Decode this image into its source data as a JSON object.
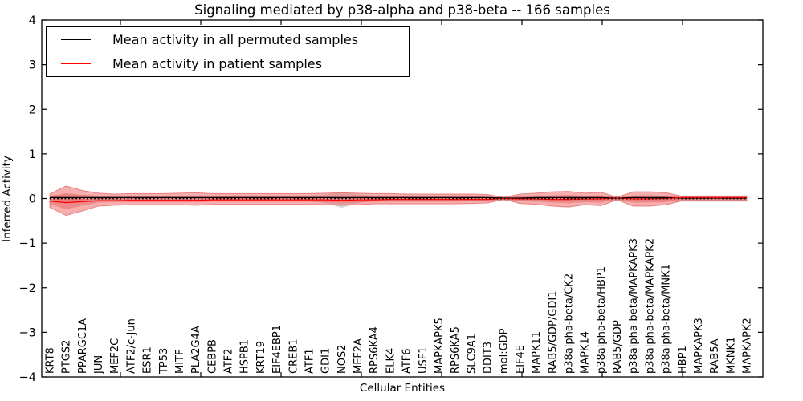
{
  "title": "Signaling mediated by p38-alpha and p38-beta -- 166 samples",
  "legend": {
    "items": [
      {
        "label": "Mean activity in all permuted samples",
        "color": "#000000"
      },
      {
        "label": "Mean activity in patient samples",
        "color": "#ff0000"
      }
    ]
  },
  "axes": {
    "xlabel": "Cellular Entities",
    "ylabel": "Inferred Activity",
    "yticks": [
      "4",
      "3",
      "2",
      "1",
      "0",
      "−1",
      "−2",
      "−3",
      "−4"
    ]
  },
  "chart_data": {
    "type": "line",
    "title": "Signaling mediated by p38-alpha and p38-beta -- 166 samples",
    "xlabel": "Cellular Entities",
    "ylabel": "Inferred Activity",
    "ylim": [
      -4,
      4
    ],
    "grid": false,
    "legend_position": "upper left",
    "categories": [
      "KRT8",
      "PTGS2",
      "PPARGC1A",
      "JUN",
      "MEF2C",
      "ATF2/c-Jun",
      "ESR1",
      "TP53",
      "MITF",
      "PLA2G4A",
      "CEBPB",
      "ATF2",
      "HSPB1",
      "KRT19",
      "EIF4EBP1",
      "CREB1",
      "ATF1",
      "GDI1",
      "NOS2",
      "MEF2A",
      "RPS6KA4",
      "ELK4",
      "ATF6",
      "USF1",
      "MAPKAPK5",
      "RPS6KA5",
      "SLC9A1",
      "DDIT3",
      "mol:GDP",
      "EIF4E",
      "MAPK11",
      "RAB5/GDP/GDI1",
      "p38alpha-beta/CK2",
      "MAPK14",
      "p38alpha-beta/HBP1",
      "RAB5/GDP",
      "p38alpha-beta/MAPKAPK3",
      "p38alpha-beta/MAPKAPK2",
      "p38alpha-beta/MNK1",
      "HBP1",
      "MAPKAPK3",
      "RAB5A",
      "MKNK1",
      "MAPKAPK2"
    ],
    "series": [
      {
        "name": "Mean activity in all permuted samples",
        "color": "#000000",
        "style": "solid",
        "values": [
          0.02,
          0.02,
          0.02,
          0.02,
          0.02,
          0.02,
          0.02,
          0.02,
          0.02,
          0.02,
          0.02,
          0.02,
          0.02,
          0.02,
          0.02,
          0.02,
          0.02,
          0.02,
          0.02,
          0.02,
          0.02,
          0.02,
          0.02,
          0.02,
          0.02,
          0.02,
          0.02,
          0.02,
          0.01,
          0.01,
          0.02,
          0.02,
          0.02,
          0.02,
          0.02,
          0.01,
          0.02,
          0.02,
          0.02,
          0.01,
          0.01,
          0.01,
          0.01,
          0.01
        ]
      },
      {
        "name": "Mean activity in patient samples",
        "color": "#ff0000",
        "style": "solid",
        "values": [
          -0.06,
          -0.09,
          -0.07,
          -0.05,
          -0.05,
          -0.04,
          -0.04,
          -0.04,
          -0.04,
          -0.04,
          -0.03,
          -0.03,
          -0.03,
          -0.03,
          -0.03,
          -0.03,
          -0.03,
          -0.03,
          -0.04,
          -0.03,
          -0.03,
          -0.02,
          -0.02,
          -0.02,
          -0.02,
          -0.02,
          -0.02,
          -0.02,
          0.0,
          -0.01,
          -0.01,
          -0.02,
          -0.02,
          -0.01,
          -0.01,
          0.01,
          -0.01,
          -0.01,
          0.0,
          0.02,
          0.02,
          0.02,
          0.02,
          0.02
        ]
      },
      {
        "name": "zero-reference",
        "color": "#000000",
        "style": "dotted",
        "values": [
          0,
          0,
          0,
          0,
          0,
          0,
          0,
          0,
          0,
          0,
          0,
          0,
          0,
          0,
          0,
          0,
          0,
          0,
          0,
          0,
          0,
          0,
          0,
          0,
          0,
          0,
          0,
          0,
          0,
          0,
          0,
          0,
          0,
          0,
          0,
          0,
          0,
          0,
          0,
          0,
          0,
          0,
          0,
          0
        ]
      }
    ],
    "bands": [
      {
        "name": "permuted-range",
        "color": "#888888",
        "opacity": 0.35,
        "stroke": "none",
        "upper": [
          0.06,
          0.1,
          0.08,
          0.06,
          0.06,
          0.06,
          0.06,
          0.06,
          0.06,
          0.06,
          0.06,
          0.06,
          0.06,
          0.06,
          0.06,
          0.06,
          0.06,
          0.09,
          0.15,
          0.09,
          0.06,
          0.06,
          0.06,
          0.06,
          0.06,
          0.06,
          0.06,
          0.06,
          0.05,
          0.06,
          0.06,
          0.06,
          0.06,
          0.06,
          0.06,
          0.05,
          0.06,
          0.06,
          0.06,
          0.07,
          0.07,
          0.07,
          0.07,
          0.07
        ],
        "lower": [
          -0.06,
          -0.12,
          -0.09,
          -0.06,
          -0.06,
          -0.06,
          -0.06,
          -0.06,
          -0.06,
          -0.06,
          -0.06,
          -0.06,
          -0.06,
          -0.06,
          -0.06,
          -0.06,
          -0.06,
          -0.1,
          -0.21,
          -0.1,
          -0.06,
          -0.06,
          -0.06,
          -0.06,
          -0.06,
          -0.06,
          -0.06,
          -0.06,
          -0.05,
          -0.06,
          -0.06,
          -0.06,
          -0.06,
          -0.06,
          -0.06,
          -0.05,
          -0.06,
          -0.06,
          -0.06,
          -0.07,
          -0.07,
          -0.07,
          -0.07,
          -0.07
        ]
      },
      {
        "name": "patient-range-outer",
        "color": "#ee6b6b",
        "opacity": 0.55,
        "stroke": "#e26060",
        "upper": [
          0.1,
          0.28,
          0.18,
          0.12,
          0.1,
          0.11,
          0.11,
          0.11,
          0.12,
          0.13,
          0.11,
          0.11,
          0.11,
          0.11,
          0.11,
          0.11,
          0.11,
          0.12,
          0.13,
          0.12,
          0.11,
          0.11,
          0.1,
          0.1,
          0.1,
          0.1,
          0.1,
          0.09,
          0.02,
          0.1,
          0.12,
          0.15,
          0.16,
          0.12,
          0.14,
          0.03,
          0.15,
          0.15,
          0.13,
          0.05,
          0.05,
          0.05,
          0.05,
          0.05
        ],
        "lower": [
          -0.2,
          -0.38,
          -0.28,
          -0.17,
          -0.15,
          -0.14,
          -0.14,
          -0.14,
          -0.14,
          -0.15,
          -0.13,
          -0.13,
          -0.13,
          -0.13,
          -0.13,
          -0.13,
          -0.13,
          -0.14,
          -0.15,
          -0.14,
          -0.12,
          -0.12,
          -0.12,
          -0.12,
          -0.12,
          -0.12,
          -0.11,
          -0.1,
          -0.02,
          -0.11,
          -0.13,
          -0.17,
          -0.19,
          -0.14,
          -0.16,
          -0.03,
          -0.17,
          -0.17,
          -0.14,
          -0.05,
          -0.04,
          -0.04,
          -0.04,
          -0.04
        ]
      },
      {
        "name": "patient-range-inner",
        "color": "#ee6b6b",
        "opacity": 0.55,
        "stroke": "none",
        "upper": [
          0.05,
          0.12,
          0.08,
          0.06,
          0.05,
          0.05,
          0.05,
          0.05,
          0.06,
          0.06,
          0.05,
          0.05,
          0.05,
          0.05,
          0.05,
          0.05,
          0.05,
          0.06,
          0.06,
          0.06,
          0.05,
          0.05,
          0.05,
          0.05,
          0.05,
          0.05,
          0.05,
          0.04,
          0.01,
          0.05,
          0.06,
          0.07,
          0.08,
          0.06,
          0.07,
          0.02,
          0.07,
          0.07,
          0.06,
          0.03,
          0.03,
          0.03,
          0.03,
          0.03
        ],
        "lower": [
          -0.12,
          -0.24,
          -0.16,
          -0.09,
          -0.08,
          -0.08,
          -0.08,
          -0.08,
          -0.08,
          -0.08,
          -0.07,
          -0.07,
          -0.07,
          -0.07,
          -0.07,
          -0.07,
          -0.07,
          -0.08,
          -0.09,
          -0.08,
          -0.07,
          -0.07,
          -0.07,
          -0.07,
          -0.07,
          -0.07,
          -0.06,
          -0.06,
          -0.01,
          -0.06,
          -0.07,
          -0.09,
          -0.1,
          -0.08,
          -0.09,
          -0.02,
          -0.09,
          -0.09,
          -0.08,
          -0.03,
          -0.02,
          -0.02,
          -0.02,
          -0.02
        ]
      }
    ]
  }
}
